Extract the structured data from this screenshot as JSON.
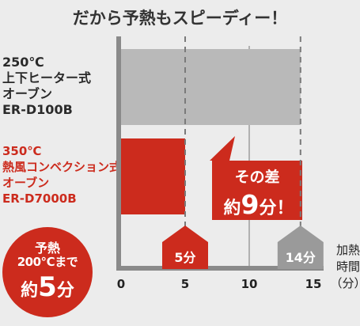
{
  "headline": "だから予熱もスピーディー！",
  "rows": [
    {
      "lines": [
        "250℃",
        "上下ヒーター式",
        "オーブン",
        "ER-D100B"
      ],
      "color": "#2a2a2a"
    },
    {
      "lines": [
        "350℃",
        "熱風コンベクション式",
        "オーブン",
        "ER-D7000B"
      ],
      "color": "#cc2b1d"
    }
  ],
  "badge": {
    "line1": "予熱",
    "line2": "200℃まで",
    "line3_prefix": "約",
    "line3_number": "5",
    "line3_suffix": "分"
  },
  "callout": {
    "line1": "その差",
    "line2_prefix": "約",
    "line2_number": "9",
    "line2_suffix": "分！"
  },
  "axis_label": [
    "加熱",
    "時間",
    "（分）"
  ],
  "colors": {
    "gray_bar": "#b9b9b9",
    "red_bar": "#cc2b1d",
    "axis": "#8a8a8a",
    "marker_gray": "#9a9a9a",
    "background": "#ececec"
  },
  "chart_data": {
    "type": "bar",
    "orientation": "horizontal",
    "categories": [
      "ER-D100B",
      "ER-D7000B"
    ],
    "values": [
      14,
      5
    ],
    "xlim": [
      0,
      16
    ],
    "x_ticks": [
      0,
      5,
      10,
      15
    ],
    "x_tick_labels": [
      "0",
      "5",
      "10",
      "15"
    ],
    "markers": [
      {
        "value": 5,
        "label": "5分",
        "color": "#cc2b1d"
      },
      {
        "value": 14,
        "label": "14分",
        "color": "#9a9a9a"
      }
    ],
    "difference": 9
  }
}
